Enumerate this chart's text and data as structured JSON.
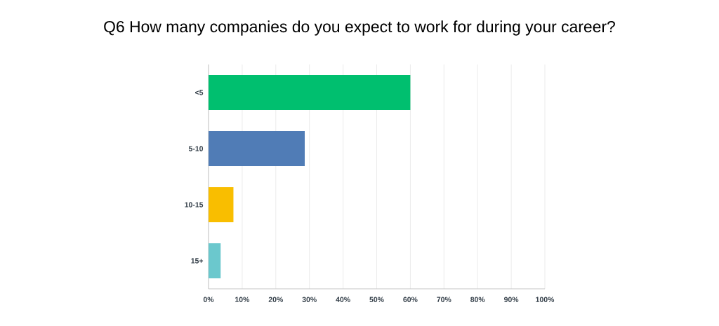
{
  "chart_data": {
    "type": "bar",
    "orientation": "horizontal",
    "title": "Q6 How many companies do you expect to work for during your career?",
    "categories": [
      "<5",
      "5-10",
      "10-15",
      "15+"
    ],
    "values": [
      60,
      28.6,
      7.4,
      3.6
    ],
    "colors": [
      "#00bf6f",
      "#507cb6",
      "#f9be00",
      "#6bc8cd"
    ],
    "xlim": [
      0,
      100
    ],
    "xticks": [
      {
        "value": 0,
        "label": "0%"
      },
      {
        "value": 10,
        "label": "10%"
      },
      {
        "value": 20,
        "label": "20%"
      },
      {
        "value": 30,
        "label": "30%"
      },
      {
        "value": 40,
        "label": "40%"
      },
      {
        "value": 50,
        "label": "50%"
      },
      {
        "value": 60,
        "label": "60%"
      },
      {
        "value": 70,
        "label": "70%"
      },
      {
        "value": 80,
        "label": "80%"
      },
      {
        "value": 90,
        "label": "90%"
      },
      {
        "value": 100,
        "label": "100%"
      }
    ],
    "grid": "x"
  }
}
